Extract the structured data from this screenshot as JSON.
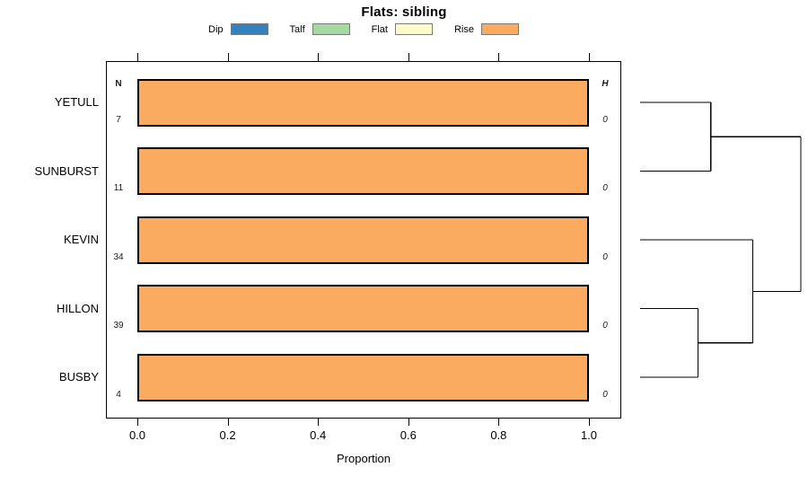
{
  "title": "Flats: sibling",
  "chart_data": {
    "type": "bar",
    "orientation": "horizontal",
    "title": "Flats: sibling",
    "xlabel": "Proportion",
    "xlim": [
      0,
      1
    ],
    "x_ticks": [
      "0.0",
      "0.2",
      "0.4",
      "0.6",
      "0.8",
      "1.0"
    ],
    "grid": false,
    "legend_position": "top",
    "categories": [
      "YETULL",
      "SUNBURST",
      "KEVIN",
      "HILLON",
      "BUSBY"
    ],
    "series": [
      {
        "name": "Dip",
        "color": "#3182BD",
        "values": [
          0,
          0,
          0,
          0,
          0
        ]
      },
      {
        "name": "Talf",
        "color": "#A5D9A1",
        "values": [
          0,
          0,
          0,
          0,
          0
        ]
      },
      {
        "name": "Flat",
        "color": "#FCFCC9",
        "values": [
          0,
          0,
          0,
          0,
          0
        ]
      },
      {
        "name": "Rise",
        "color": "#FBAB60",
        "values": [
          1,
          1,
          1,
          1,
          1
        ]
      }
    ],
    "n_header": "N",
    "h_header": "H",
    "n_values": [
      7,
      11,
      34,
      39,
      4
    ],
    "h_values": [
      0,
      0,
      0,
      0,
      0
    ],
    "dendrogram": {
      "side": "right",
      "leaf_order": [
        "YETULL",
        "SUNBURST",
        "KEVIN",
        "HILLON",
        "BUSBY"
      ],
      "merges": [
        {
          "id": "m0",
          "children": [
            "YETULL",
            "SUNBURST"
          ],
          "pos": 0.44
        },
        {
          "id": "m1",
          "children": [
            "HILLON",
            "BUSBY"
          ],
          "pos": 0.36
        },
        {
          "id": "m2",
          "children": [
            "KEVIN",
            "m1"
          ],
          "pos": 0.7
        },
        {
          "id": "m3",
          "children": [
            "m0",
            "m2"
          ],
          "pos": 1.0
        }
      ]
    }
  }
}
